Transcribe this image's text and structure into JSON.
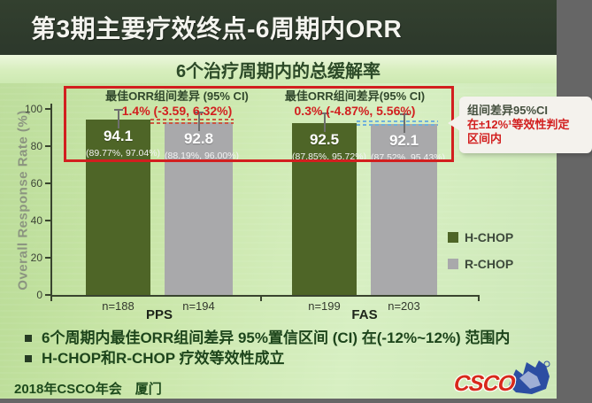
{
  "slide": {
    "title": "第3期主要疗效终点-6周期内ORR",
    "footer": "2018年CSCO年会　厦门",
    "logo": "CSCO"
  },
  "chart_data": {
    "type": "bar",
    "title": "6个治疗周期内的总缓解率",
    "ylabel": "Overall Response Rate (%)",
    "ylim": [
      0,
      100
    ],
    "yticks": [
      "0",
      "20",
      "40",
      "60",
      "80",
      "100"
    ],
    "grid": false,
    "legend_position": "right",
    "groups": [
      "PPS",
      "FAS"
    ],
    "series_names": [
      "H-CHOP",
      "R-CHOP"
    ],
    "bars": [
      {
        "group": "PPS",
        "series": "H-CHOP",
        "pct": 94.1,
        "value": "94.1",
        "ci": "(89.77%, 97.04%)",
        "n": "n=188",
        "color_key": "hchop"
      },
      {
        "group": "PPS",
        "series": "R-CHOP",
        "pct": 92.8,
        "value": "92.8",
        "ci": "(88.19%, 96.00%)",
        "n": "n=194",
        "color_key": "rchop"
      },
      {
        "group": "FAS",
        "series": "H-CHOP",
        "pct": 92.5,
        "value": "92.5",
        "ci": "(87.85%, 95.72%)",
        "n": "n=199",
        "color_key": "hchop"
      },
      {
        "group": "FAS",
        "series": "R-CHOP",
        "pct": 92.1,
        "value": "92.1",
        "ci": "(87.52%, 95.43%)",
        "n": "n=203",
        "color_key": "rchop"
      }
    ],
    "annotations": [
      {
        "label": "最佳ORR组间差异 (95% CI)",
        "value": "1.4% (-3.59, 6.32%)"
      },
      {
        "label": "最佳ORR组间差异(95% CI)",
        "value": "0.3% (-4.87%, 5.56%)"
      }
    ]
  },
  "legend": [
    {
      "label": "H-CHOP",
      "color_key": "hchop"
    },
    {
      "label": "R-CHOP",
      "color_key": "rchop"
    }
  ],
  "callout": {
    "line1": "组间差异95%CI",
    "line2": "在±12%¹等效性判定",
    "line3": "区间内"
  },
  "bullets": [
    "6个周期内最佳ORR组间差异 95%置信区间 (CI) 在(-12%~12%) 范围内",
    "H-CHOP和R-CHOP 疗效等效性成立"
  ],
  "colors": {
    "hchop": "#4e6527",
    "rchop": "#a9a9ab",
    "accent_red": "#d21f1f",
    "dashed_red": "#cc5540",
    "dashed_blue": "#6fb0dc",
    "banner": "#2d392d"
  }
}
